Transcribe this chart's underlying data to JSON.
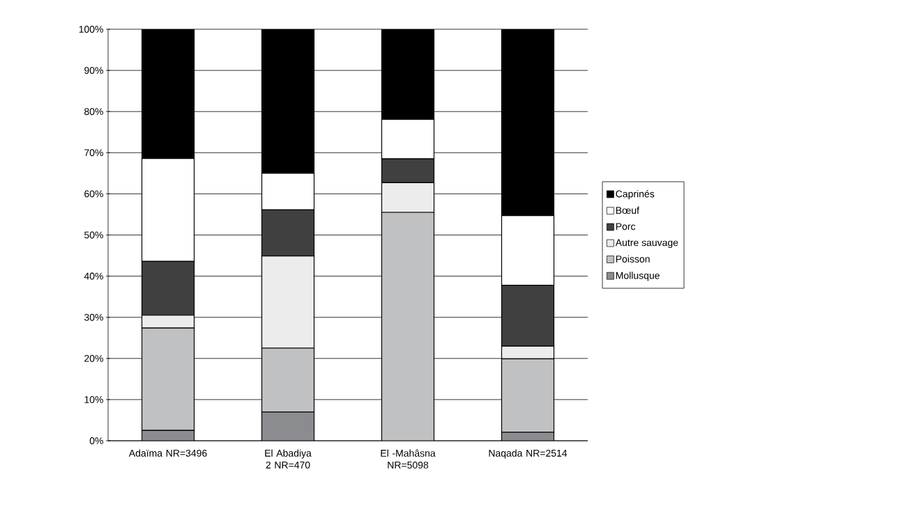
{
  "chart_data": {
    "type": "bar",
    "stacked": true,
    "categories": [
      "Adaïma NR=3496",
      "El Abadiya 2 NR=470",
      "El -Mahâsna NR=5098",
      "Naqada NR=2514"
    ],
    "series": [
      {
        "name": "Mollusque",
        "color": "#8a8c90",
        "values": [
          2.5,
          7.0,
          0,
          2.1
        ]
      },
      {
        "name": "Poisson",
        "color": "#c0c1c3",
        "values": [
          24.9,
          15.5,
          55.5,
          17.8
        ]
      },
      {
        "name": "Autre sauvage",
        "color": "#ececec",
        "values": [
          3.1,
          22.4,
          7.2,
          3.1
        ]
      },
      {
        "name": "Porc",
        "color": "#404040",
        "values": [
          13.1,
          11.2,
          5.8,
          14.8
        ]
      },
      {
        "name": "Bœuf",
        "color": "#ffffff",
        "values": [
          25.0,
          8.9,
          9.6,
          16.9
        ]
      },
      {
        "name": "Caprinés",
        "color": "#000000",
        "values": [
          31.4,
          35.0,
          21.9,
          45.3
        ]
      }
    ],
    "ylim": [
      0,
      100
    ],
    "yticks": [
      {
        "value": 0,
        "label": "0%"
      },
      {
        "value": 10,
        "label": "10%"
      },
      {
        "value": 20,
        "label": "20%"
      },
      {
        "value": 30,
        "label": "30%"
      },
      {
        "value": 40,
        "label": "40%"
      },
      {
        "value": 50,
        "label": "50%"
      },
      {
        "value": 60,
        "label": "60%"
      },
      {
        "value": 70,
        "label": "70%"
      },
      {
        "value": 80,
        "label": "80%"
      },
      {
        "value": 90,
        "label": "90%"
      },
      {
        "value": 100,
        "label": "100%"
      }
    ],
    "grid": "y",
    "legend": "right"
  }
}
